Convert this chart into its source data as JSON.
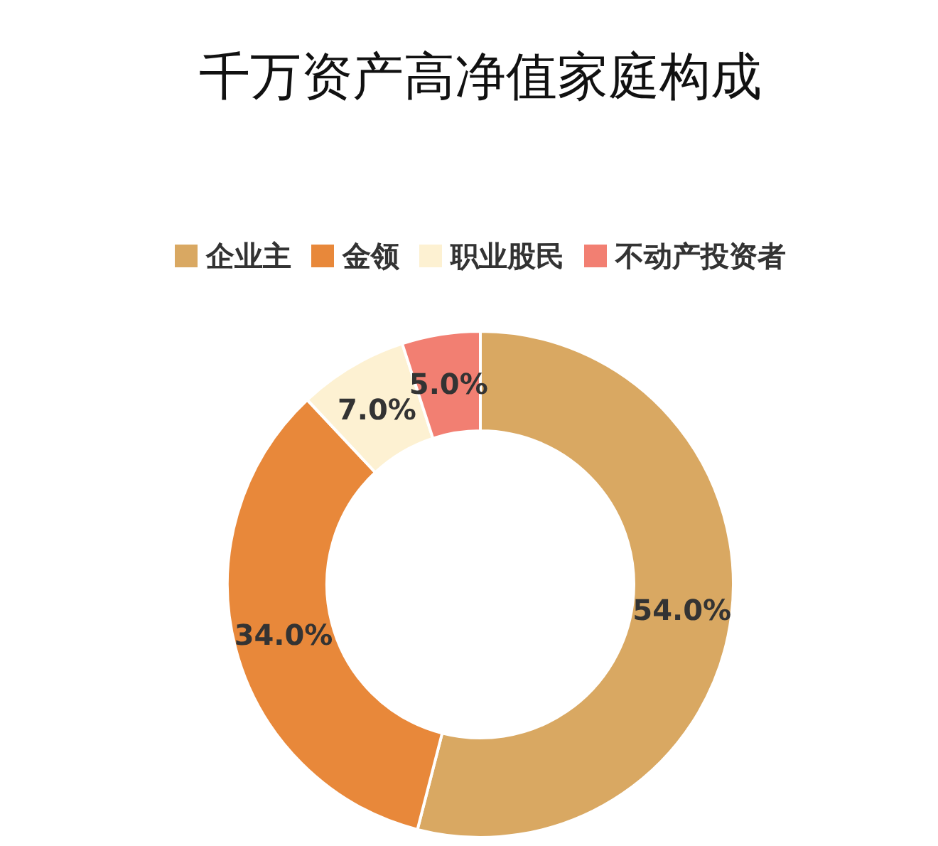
{
  "chart_data": {
    "type": "donut",
    "title": "千万资产高净值家庭构成",
    "categories": [
      "企业主",
      "金领",
      "职业股民",
      "不动产投资者"
    ],
    "values": [
      54,
      34,
      7,
      5
    ],
    "value_labels": [
      "54.0%",
      "34.0%",
      "7.0%",
      "5.0%"
    ],
    "colors": [
      "#d9a862",
      "#e8883a",
      "#fdf1d2",
      "#f27f72"
    ],
    "legend": "top"
  }
}
